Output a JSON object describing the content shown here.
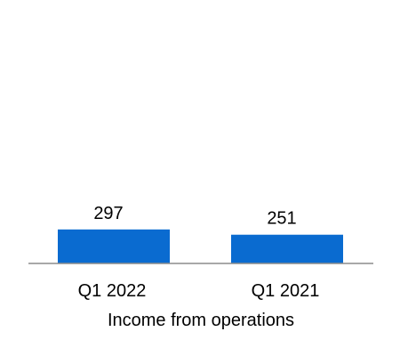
{
  "colors": {
    "bar": "#0a6bd0",
    "axis": "#8c8c8c",
    "text": "#000000",
    "background": "#ffffff"
  },
  "chart_data": {
    "type": "bar",
    "categories": [
      "Q1 2022",
      "Q1 2021"
    ],
    "values": [
      297,
      251
    ],
    "data_labels": [
      "297",
      "251"
    ],
    "xlabel": "Income from operations",
    "ylabel": "",
    "ylim": [
      0,
      1000
    ],
    "grid": false,
    "legend": "none"
  }
}
